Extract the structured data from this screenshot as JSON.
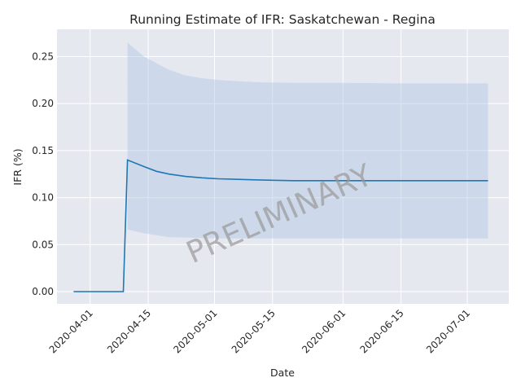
{
  "chart_data": {
    "type": "line",
    "title": "Running Estimate of IFR: Saskatchewan - Regina",
    "xlabel": "Date",
    "ylabel": "IFR (%)",
    "xlim": [
      "2020-03-24",
      "2020-07-11"
    ],
    "ylim": [
      -0.013,
      0.279
    ],
    "x_ticks": [
      "2020-04-01",
      "2020-04-15",
      "2020-05-01",
      "2020-05-15",
      "2020-06-01",
      "2020-06-15",
      "2020-07-01"
    ],
    "y_ticks": [
      "0.00",
      "0.05",
      "0.10",
      "0.15",
      "0.20",
      "0.25"
    ],
    "grid": true,
    "watermark": "PRELIMINARY",
    "colors": {
      "line": "#1f77b4",
      "band": "#b0c8e2",
      "plot_bg": "#e6e8f0",
      "grid": "#ffffff",
      "watermark": "#999999"
    },
    "series": [
      {
        "x": [
          "2020-03-28",
          "2020-04-09",
          "2020-04-10",
          "2020-04-14",
          "2020-04-17",
          "2020-04-20",
          "2020-04-24",
          "2020-04-28",
          "2020-05-02",
          "2020-05-06",
          "2020-05-10",
          "2020-05-14",
          "2020-05-20",
          "2020-06-01",
          "2020-06-15",
          "2020-07-06"
        ],
        "y": [
          0.0,
          0.0,
          0.14,
          0.133,
          0.128,
          0.125,
          0.1225,
          0.121,
          0.12,
          0.1195,
          0.119,
          0.1185,
          0.118,
          0.118,
          0.118,
          0.118
        ]
      }
    ],
    "band": {
      "x": [
        "2020-04-10",
        "2020-04-14",
        "2020-04-17",
        "2020-04-20",
        "2020-04-24",
        "2020-04-28",
        "2020-05-02",
        "2020-05-06",
        "2020-05-10",
        "2020-05-14",
        "2020-05-20",
        "2020-06-01",
        "2020-06-15",
        "2020-07-06"
      ],
      "upper": [
        0.265,
        0.25,
        0.243,
        0.236,
        0.23,
        0.227,
        0.225,
        0.224,
        0.223,
        0.2225,
        0.222,
        0.222,
        0.2215,
        0.2215
      ],
      "lower": [
        0.066,
        0.062,
        0.06,
        0.058,
        0.0575,
        0.057,
        0.0565,
        0.0565,
        0.0565,
        0.0565,
        0.0565,
        0.0565,
        0.0565,
        0.0565
      ]
    }
  }
}
